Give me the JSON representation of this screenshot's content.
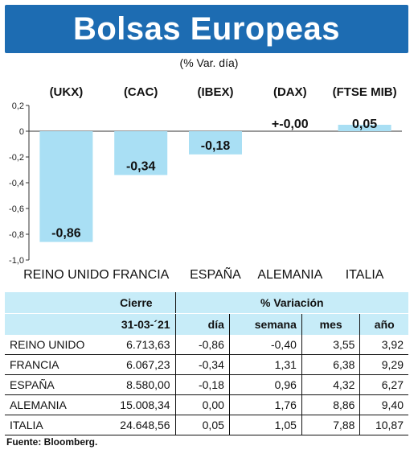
{
  "header": {
    "title": "Bolsas Europeas",
    "subtitle": "(% Var. día)"
  },
  "chart_data": {
    "type": "bar",
    "tickers": [
      "(UKX)",
      "(CAC)",
      "(IBEX)",
      "(DAX)",
      "(FTSE MIB)"
    ],
    "categories": [
      "REINO UNIDO",
      "FRANCIA",
      "ESPAÑA",
      "ALEMANIA",
      "ITALIA"
    ],
    "values": [
      -0.86,
      -0.34,
      -0.18,
      0.0,
      0.05
    ],
    "value_labels": [
      "-0,86",
      "-0,34",
      "-0,18",
      "+-0,00",
      "0,05"
    ],
    "ylim": [
      -1.0,
      0.2
    ],
    "yticks": [
      0.2,
      0,
      -0.2,
      -0.4,
      -0.6,
      -0.8,
      -1.0
    ],
    "ytick_labels": [
      "0,2",
      "0",
      "-0,2",
      "-0,4",
      "-0,6",
      "-0,8",
      "-1,0"
    ],
    "bar_color": "#a9dff4",
    "grid": false
  },
  "table": {
    "header_cierre": "Cierre",
    "header_variacion": "% Variación",
    "header_date": "31-03-´21",
    "header_dia": "día",
    "header_semana": "semana",
    "header_mes": "mes",
    "header_anio": "año",
    "rows": [
      {
        "name": "REINO UNIDO",
        "cierre": "6.713,63",
        "dia": "-0,86",
        "semana": "-0,40",
        "mes": "3,55",
        "anio": "3,92"
      },
      {
        "name": "FRANCIA",
        "cierre": "6.067,23",
        "dia": "-0,34",
        "semana": "1,31",
        "mes": "6,38",
        "anio": "9,29"
      },
      {
        "name": "ESPAÑA",
        "cierre": "8.580,00",
        "dia": "-0,18",
        "semana": "0,96",
        "mes": "4,32",
        "anio": "6,27"
      },
      {
        "name": "ALEMANIA",
        "cierre": "15.008,34",
        "dia": "0,00",
        "semana": "1,76",
        "mes": "8,86",
        "anio": "9,40"
      },
      {
        "name": "ITALIA",
        "cierre": "24.648,56",
        "dia": "0,05",
        "semana": "1,05",
        "mes": "7,88",
        "anio": "10,87"
      }
    ]
  },
  "source": "Fuente: Bloomberg.",
  "colors": {
    "title_bg": "#1d6cb2",
    "table_header_bg": "#c7ecf8"
  }
}
